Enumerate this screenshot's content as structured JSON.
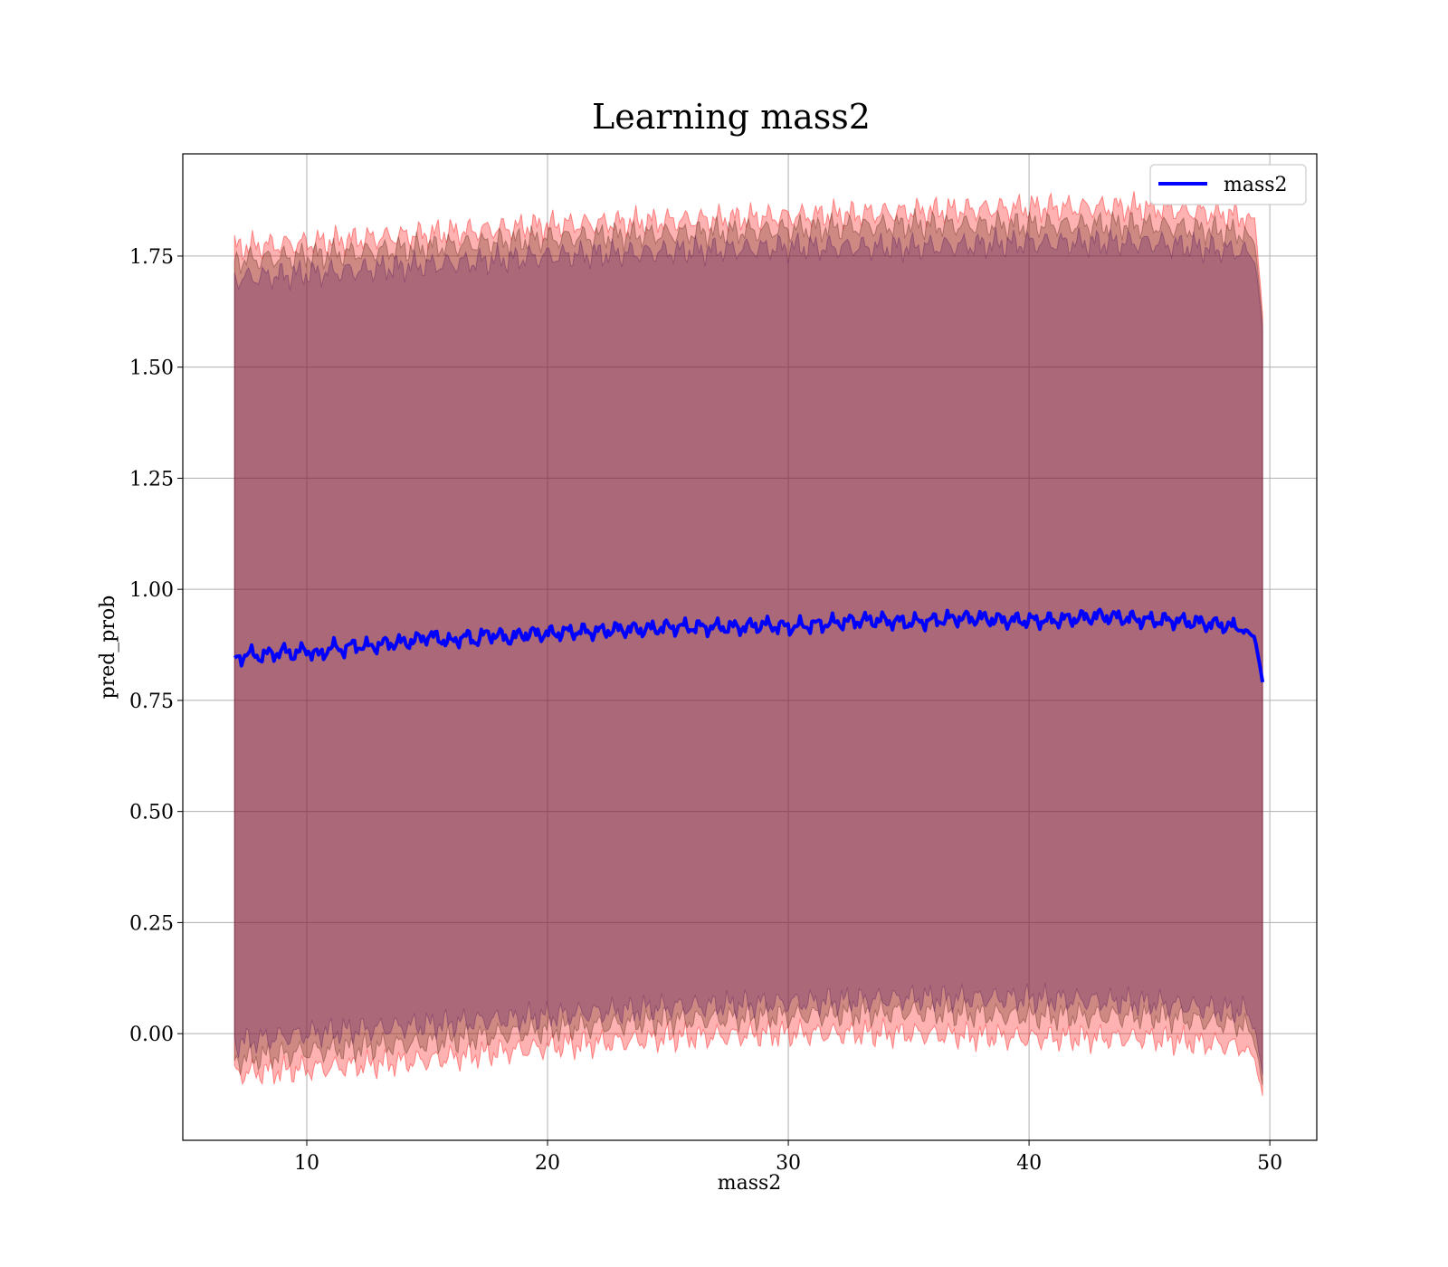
{
  "chart_data": {
    "type": "line",
    "title": "Learning mass2",
    "xlabel": "mass2",
    "ylabel": "pred_prob",
    "xlim": [
      4.85,
      51.95
    ],
    "ylim": [
      -0.24,
      1.98
    ],
    "xticks": [
      10,
      20,
      30,
      40,
      50
    ],
    "yticks": [
      0.0,
      0.25,
      0.5,
      0.75,
      1.0,
      1.25,
      1.5,
      1.75
    ],
    "ytick_labels": [
      "0.00",
      "0.25",
      "0.50",
      "0.75",
      "1.00",
      "1.25",
      "1.50",
      "1.75"
    ],
    "grid": true,
    "legend": {
      "position": "top-right",
      "entries": [
        "mass2"
      ]
    },
    "series": [
      {
        "name": "mass2",
        "color": "#0000ff",
        "x": [
          7.0,
          7.5,
          8.0,
          8.5,
          9.0,
          9.5,
          10.0,
          10.5,
          11.0,
          11.5,
          12.0,
          12.5,
          13.0,
          13.5,
          14.0,
          14.5,
          15.0,
          15.5,
          16.0,
          16.5,
          17.0,
          17.5,
          18.0,
          18.5,
          19.0,
          19.5,
          20.0,
          21.0,
          22.0,
          23.0,
          24.0,
          25.0,
          26.0,
          27.0,
          28.0,
          29.0,
          30.0,
          31.0,
          32.0,
          33.0,
          34.0,
          35.0,
          36.0,
          37.0,
          38.0,
          39.0,
          40.0,
          41.0,
          42.0,
          43.0,
          44.0,
          45.0,
          46.0,
          47.0,
          48.0,
          48.5,
          49.0,
          49.4,
          49.7
        ],
        "y": [
          0.84,
          0.855,
          0.85,
          0.855,
          0.86,
          0.855,
          0.865,
          0.85,
          0.87,
          0.865,
          0.875,
          0.87,
          0.875,
          0.88,
          0.88,
          0.885,
          0.895,
          0.89,
          0.88,
          0.895,
          0.885,
          0.9,
          0.895,
          0.89,
          0.9,
          0.9,
          0.9,
          0.905,
          0.905,
          0.91,
          0.91,
          0.915,
          0.915,
          0.915,
          0.915,
          0.92,
          0.915,
          0.92,
          0.925,
          0.93,
          0.93,
          0.925,
          0.93,
          0.935,
          0.935,
          0.93,
          0.93,
          0.93,
          0.935,
          0.94,
          0.935,
          0.93,
          0.93,
          0.925,
          0.92,
          0.915,
          0.905,
          0.89,
          0.79
        ]
      }
    ],
    "bands": [
      {
        "description_color": "#ff0000",
        "opacity": 0.3,
        "x": [
          7.0,
          10.0,
          15.0,
          20.0,
          25.0,
          30.0,
          35.0,
          40.0,
          45.0,
          49.0,
          49.4,
          49.7
        ],
        "upper": [
          1.77,
          1.78,
          1.8,
          1.82,
          1.83,
          1.84,
          1.85,
          1.86,
          1.86,
          1.84,
          1.83,
          1.62
        ],
        "lower": [
          -0.09,
          -0.08,
          -0.06,
          -0.03,
          -0.01,
          0.0,
          0.0,
          -0.01,
          -0.01,
          -0.03,
          -0.06,
          -0.14
        ]
      },
      {
        "description_color": "#5c2a18",
        "opacity": 0.3,
        "x": [
          7.0,
          10.0,
          15.0,
          20.0,
          25.0,
          30.0,
          35.0,
          40.0,
          45.0,
          49.0,
          49.4,
          49.7
        ],
        "upper": [
          1.74,
          1.75,
          1.77,
          1.79,
          1.8,
          1.81,
          1.82,
          1.82,
          1.82,
          1.8,
          1.78,
          1.6
        ],
        "lower": [
          -0.06,
          -0.04,
          -0.02,
          0.01,
          0.03,
          0.04,
          0.05,
          0.04,
          0.04,
          0.02,
          -0.02,
          -0.12
        ]
      },
      {
        "description_color": "#5a1e60",
        "opacity": 0.3,
        "x": [
          7.0,
          10.0,
          15.0,
          20.0,
          25.0,
          30.0,
          35.0,
          40.0,
          45.0,
          49.0,
          49.4,
          49.7
        ],
        "upper": [
          1.7,
          1.71,
          1.73,
          1.75,
          1.76,
          1.77,
          1.77,
          1.78,
          1.78,
          1.76,
          1.74,
          1.58
        ],
        "lower": [
          -0.02,
          0.0,
          0.02,
          0.04,
          0.06,
          0.07,
          0.08,
          0.08,
          0.07,
          0.05,
          0.01,
          -0.1
        ]
      }
    ]
  }
}
